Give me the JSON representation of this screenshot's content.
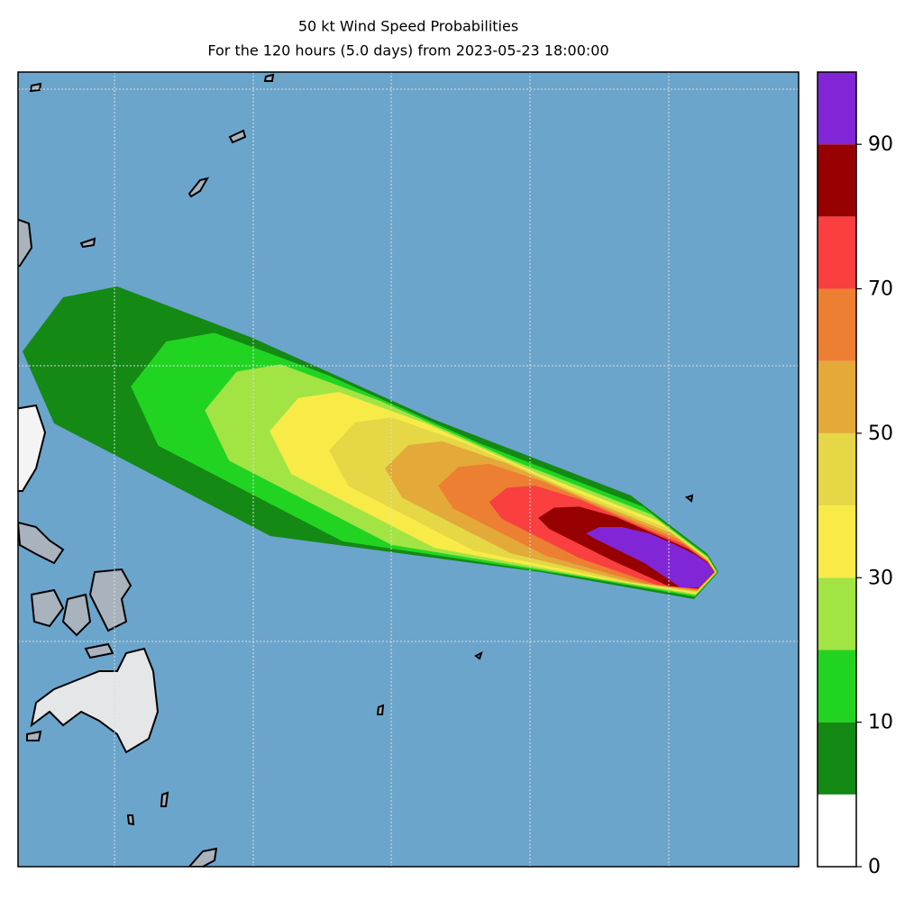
{
  "chart_data": {
    "type": "filled-contour",
    "title": "50 kt Wind Speed Probabilities",
    "subtitle": "For the 120 hours (5.0 days) from 2023-05-23 18:00:00",
    "colorbar": {
      "levels": [
        0,
        5,
        10,
        20,
        30,
        40,
        50,
        60,
        70,
        80,
        90,
        100
      ],
      "colors": [
        "#ffffff",
        "#148914",
        "#22d422",
        "#a3e445",
        "#f9eb47",
        "#e5d745",
        "#e3a939",
        "#ed7f33",
        "#f93f40",
        "#960000",
        "#8126d7"
      ],
      "ticks": [
        0,
        10,
        30,
        50,
        70,
        90
      ]
    }
  }
}
